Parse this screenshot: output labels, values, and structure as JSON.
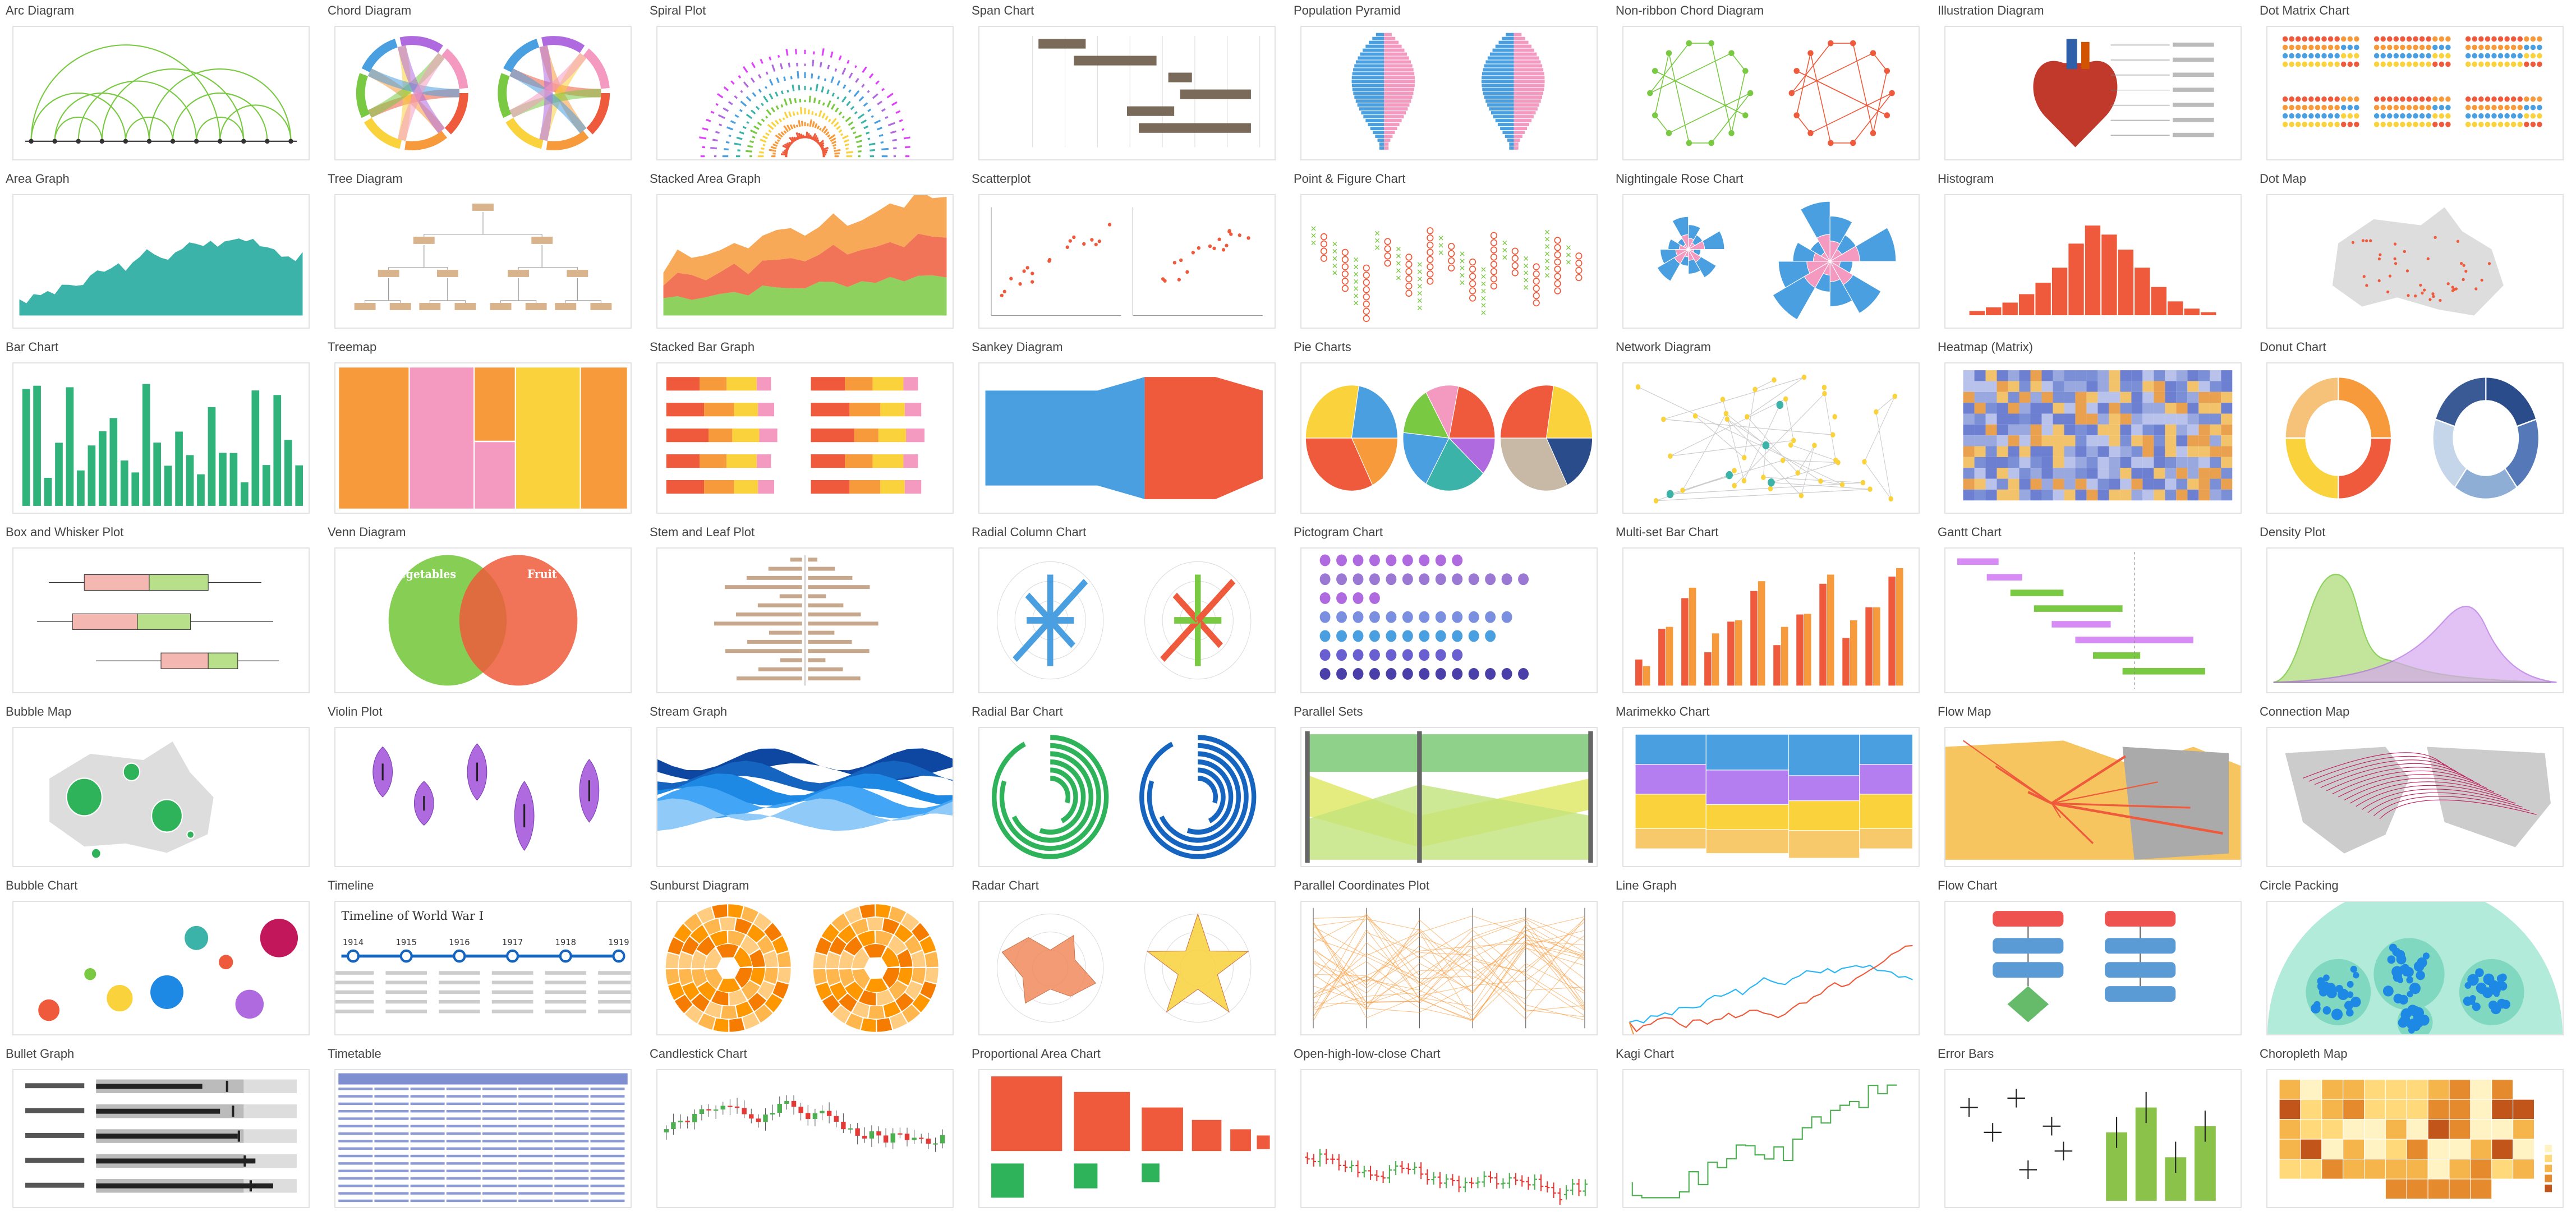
{
  "palette": {
    "green": "#7ac943",
    "teal": "#3bb3a9",
    "orange": "#f79a3b",
    "red": "#ee5a3b",
    "pink": "#f49ac1",
    "blue": "#4a9fe0",
    "purple": "#b06ae0",
    "yellow": "#f9d23c",
    "darkblue": "#2b4c8a",
    "gray": "#cccccc",
    "brown": "#7a6a5a"
  },
  "charts": [
    {
      "label": "Arc Diagram",
      "icon": "arc-diagram-icon"
    },
    {
      "label": "Chord Diagram",
      "icon": "chord-diagram-icon"
    },
    {
      "label": "Spiral Plot",
      "icon": "spiral-plot-icon"
    },
    {
      "label": "Span Chart",
      "icon": "span-chart-icon"
    },
    {
      "label": "Population Pyramid",
      "icon": "population-pyramid-icon"
    },
    {
      "label": "Non-ribbon Chord Diagram",
      "icon": "non-ribbon-chord-diagram-icon"
    },
    {
      "label": "Illustration Diagram",
      "icon": "illustration-diagram-icon"
    },
    {
      "label": "Dot Matrix Chart",
      "icon": "dot-matrix-chart-icon"
    },
    {
      "label": "Area Graph",
      "icon": "area-graph-icon"
    },
    {
      "label": "Tree Diagram",
      "icon": "tree-diagram-icon"
    },
    {
      "label": "Stacked Area Graph",
      "icon": "stacked-area-graph-icon"
    },
    {
      "label": "Scatterplot",
      "icon": "scatterplot-icon"
    },
    {
      "label": "Point & Figure Chart",
      "icon": "point-figure-chart-icon"
    },
    {
      "label": "Nightingale Rose Chart",
      "icon": "nightingale-rose-chart-icon"
    },
    {
      "label": "Histogram",
      "icon": "histogram-icon"
    },
    {
      "label": "Dot Map",
      "icon": "dot-map-icon"
    },
    {
      "label": "Bar Chart",
      "icon": "bar-chart-icon"
    },
    {
      "label": "Treemap",
      "icon": "treemap-icon"
    },
    {
      "label": "Stacked Bar Graph",
      "icon": "stacked-bar-graph-icon"
    },
    {
      "label": "Sankey Diagram",
      "icon": "sankey-diagram-icon"
    },
    {
      "label": "Pie Charts",
      "icon": "pie-charts-icon"
    },
    {
      "label": "Network Diagram",
      "icon": "network-diagram-icon"
    },
    {
      "label": "Heatmap (Matrix)",
      "icon": "heatmap-matrix-icon"
    },
    {
      "label": "Donut Chart",
      "icon": "donut-chart-icon"
    },
    {
      "label": "Box and Whisker Plot",
      "icon": "box-whisker-plot-icon"
    },
    {
      "label": "Venn Diagram",
      "icon": "venn-diagram-icon"
    },
    {
      "label": "Stem and Leaf Plot",
      "icon": "stem-leaf-plot-icon"
    },
    {
      "label": "Radial Column Chart",
      "icon": "radial-column-chart-icon"
    },
    {
      "label": "Pictogram Chart",
      "icon": "pictogram-chart-icon"
    },
    {
      "label": "Multi-set Bar Chart",
      "icon": "multi-set-bar-chart-icon"
    },
    {
      "label": "Gantt Chart",
      "icon": "gantt-chart-icon"
    },
    {
      "label": "Density Plot",
      "icon": "density-plot-icon"
    },
    {
      "label": "Bubble Map",
      "icon": "bubble-map-icon"
    },
    {
      "label": "Violin Plot",
      "icon": "violin-plot-icon"
    },
    {
      "label": "Stream Graph",
      "icon": "stream-graph-icon"
    },
    {
      "label": "Radial Bar Chart",
      "icon": "radial-bar-chart-icon"
    },
    {
      "label": "Parallel Sets",
      "icon": "parallel-sets-icon"
    },
    {
      "label": "Marimekko Chart",
      "icon": "marimekko-chart-icon"
    },
    {
      "label": "Flow Map",
      "icon": "flow-map-icon"
    },
    {
      "label": "Connection Map",
      "icon": "connection-map-icon"
    },
    {
      "label": "Bubble Chart",
      "icon": "bubble-chart-icon"
    },
    {
      "label": "Timeline",
      "icon": "timeline-icon"
    },
    {
      "label": "Sunburst Diagram",
      "icon": "sunburst-diagram-icon"
    },
    {
      "label": "Radar Chart",
      "icon": "radar-chart-icon"
    },
    {
      "label": "Parallel Coordinates Plot",
      "icon": "parallel-coordinates-plot-icon"
    },
    {
      "label": "Line Graph",
      "icon": "line-graph-icon"
    },
    {
      "label": "Flow Chart",
      "icon": "flow-chart-icon"
    },
    {
      "label": "Circle Packing",
      "icon": "circle-packing-icon"
    },
    {
      "label": "Bullet Graph",
      "icon": "bullet-graph-icon"
    },
    {
      "label": "Timetable",
      "icon": "timetable-icon"
    },
    {
      "label": "Candlestick Chart",
      "icon": "candlestick-chart-icon"
    },
    {
      "label": "Proportional Area Chart",
      "icon": "proportional-area-chart-icon"
    },
    {
      "label": "Open-high-low-close Chart",
      "icon": "ohlc-chart-icon"
    },
    {
      "label": "Kagi Chart",
      "icon": "kagi-chart-icon"
    },
    {
      "label": "Error Bars",
      "icon": "error-bars-icon"
    },
    {
      "label": "Choropleth Map",
      "icon": "choropleth-map-icon"
    }
  ],
  "venn": {
    "left": "Vegetables",
    "right": "Fruit"
  },
  "timeline": {
    "title": "Timeline of World War I",
    "years": [
      "1914",
      "1915",
      "1916",
      "1917",
      "1918",
      "1919"
    ]
  }
}
